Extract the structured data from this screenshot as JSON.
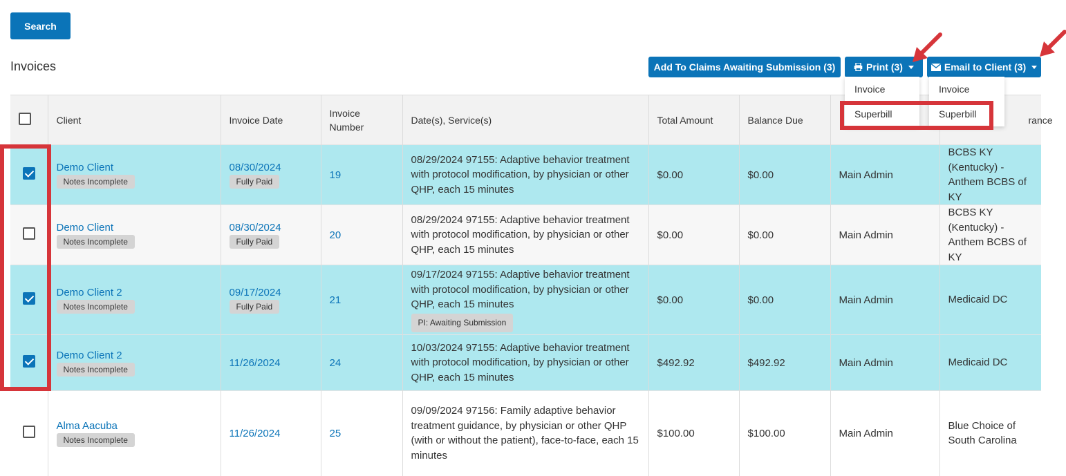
{
  "search_button": "Search",
  "title": "Invoices",
  "toolbar": {
    "add_claims": "Add To Claims Awaiting Submission (3)",
    "print": "Print (3)",
    "email": "Email to Client (3)"
  },
  "print_menu": [
    "Invoice",
    "Superbill"
  ],
  "email_menu": [
    "Invoice",
    "Superbill"
  ],
  "columns": [
    "Client",
    "Invoice Date",
    "Invoice Number",
    "Date(s), Service(s)",
    "Total Amount",
    "Balance Due",
    "",
    "rance"
  ],
  "rows": [
    {
      "client": "Demo Client",
      "client_badge": "Notes Incomplete",
      "date": "08/30/2024",
      "date_badge": "Fully Paid",
      "number": "19",
      "service": "08/29/2024 97155: Adaptive behavior treatment with protocol modification, by physician or other QHP, each 15 minutes",
      "service_badge": "",
      "total": "$0.00",
      "balance": "$0.00",
      "staff": "Main Admin",
      "insurance": "BCBS KY (Kentucky) - Anthem BCBS of KY"
    },
    {
      "client": "Demo Client",
      "client_badge": "Notes Incomplete",
      "date": "08/30/2024",
      "date_badge": "Fully Paid",
      "number": "20",
      "service": "08/29/2024 97155: Adaptive behavior treatment with protocol modification, by physician or other QHP, each 15 minutes",
      "service_badge": "",
      "total": "$0.00",
      "balance": "$0.00",
      "staff": "Main Admin",
      "insurance": "BCBS KY (Kentucky) - Anthem BCBS of KY"
    },
    {
      "client": "Demo Client 2",
      "client_badge": "Notes Incomplete",
      "date": "09/17/2024",
      "date_badge": "Fully Paid",
      "number": "21",
      "service": "09/17/2024 97155: Adaptive behavior treatment with protocol modification, by physician or other QHP, each 15 minutes",
      "service_badge": "PI: Awaiting Submission",
      "total": "$0.00",
      "balance": "$0.00",
      "staff": "Main Admin",
      "insurance": "Medicaid DC"
    },
    {
      "client": "Demo Client 2",
      "client_badge": "Notes Incomplete",
      "date": "11/26/2024",
      "date_badge": "",
      "number": "24",
      "service": "10/03/2024 97155: Adaptive behavior treatment with protocol modification, by physician or other QHP, each 15 minutes",
      "service_badge": "",
      "total": "$492.92",
      "balance": "$492.92",
      "staff": "Main Admin",
      "insurance": "Medicaid DC"
    },
    {
      "client": "Alma Aacuba",
      "client_badge": "Notes Incomplete",
      "date": "11/26/2024",
      "date_badge": "",
      "number": "25",
      "service": "09/09/2024 97156: Family adaptive behavior treatment guidance, by physician or other QHP (with or without the patient), face-to-face, each 15 minutes",
      "service_badge": "",
      "total": "$100.00",
      "balance": "$100.00",
      "staff": "Main Admin",
      "insurance": "Blue Choice of South Carolina"
    }
  ],
  "colors": {
    "primary": "#0b74b8",
    "selected_row": "#aee8ef",
    "annotation": "#d6353a"
  }
}
